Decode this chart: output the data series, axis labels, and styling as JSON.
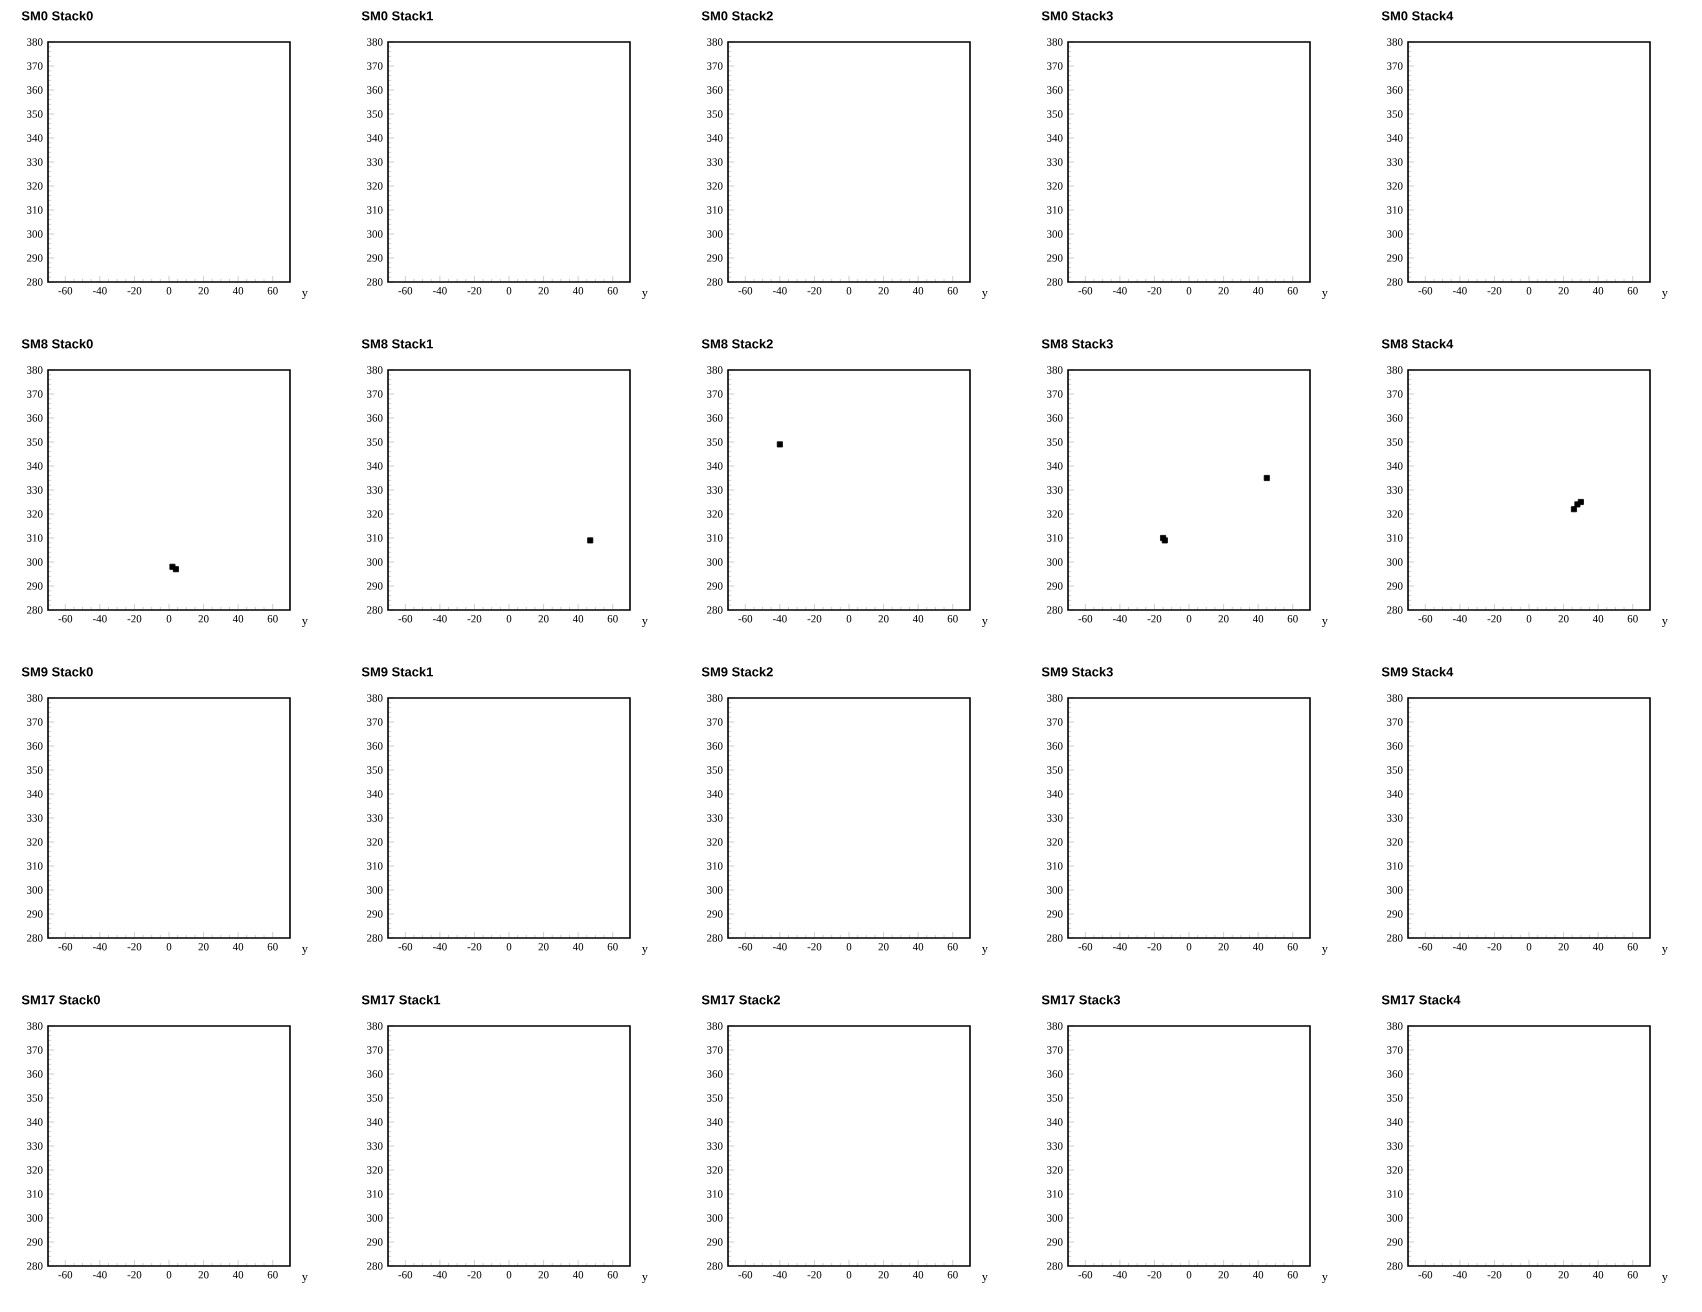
{
  "chart_data": [
    {
      "type": "scatter",
      "title": "SM0 Stack0",
      "xlabel": "y",
      "xlim": [
        -70,
        70
      ],
      "ylim": [
        280,
        380
      ],
      "xticks": [
        -60,
        -40,
        -20,
        0,
        20,
        40,
        60
      ],
      "yticks": [
        280,
        290,
        300,
        310,
        320,
        330,
        340,
        350,
        360,
        370,
        380
      ]
    },
    {
      "type": "scatter",
      "title": "SM0 Stack1",
      "xlabel": "y",
      "xlim": [
        -70,
        70
      ],
      "ylim": [
        280,
        380
      ],
      "xticks": [
        -60,
        -40,
        -20,
        0,
        20,
        40,
        60
      ],
      "yticks": [
        280,
        290,
        300,
        310,
        320,
        330,
        340,
        350,
        360,
        370,
        380
      ]
    },
    {
      "type": "scatter",
      "title": "SM0 Stack2",
      "xlabel": "y",
      "xlim": [
        -70,
        70
      ],
      "ylim": [
        280,
        380
      ],
      "xticks": [
        -60,
        -40,
        -20,
        0,
        20,
        40,
        60
      ],
      "yticks": [
        280,
        290,
        300,
        310,
        320,
        330,
        340,
        350,
        360,
        370,
        380
      ]
    },
    {
      "type": "scatter",
      "title": "SM0 Stack3",
      "xlabel": "y",
      "xlim": [
        -70,
        70
      ],
      "ylim": [
        280,
        380
      ],
      "xticks": [
        -60,
        -40,
        -20,
        0,
        20,
        40,
        60
      ],
      "yticks": [
        280,
        290,
        300,
        310,
        320,
        330,
        340,
        350,
        360,
        370,
        380
      ]
    },
    {
      "type": "scatter",
      "title": "SM0 Stack4",
      "xlabel": "y",
      "xlim": [
        -70,
        70
      ],
      "ylim": [
        280,
        380
      ],
      "xticks": [
        -60,
        -40,
        -20,
        0,
        20,
        40,
        60
      ],
      "yticks": [
        280,
        290,
        300,
        310,
        320,
        330,
        340,
        350,
        360,
        370,
        380
      ]
    },
    {
      "type": "scatter",
      "title": "SM8 Stack0",
      "xlabel": "y",
      "xlim": [
        -70,
        70
      ],
      "ylim": [
        280,
        380
      ],
      "xticks": [
        -60,
        -40,
        -20,
        0,
        20,
        40,
        60
      ],
      "yticks": [
        280,
        290,
        300,
        310,
        320,
        330,
        340,
        350,
        360,
        370,
        380
      ],
      "marker": "square",
      "color": "#000000",
      "x": [
        2,
        4
      ],
      "values": [
        298,
        297
      ]
    },
    {
      "type": "scatter",
      "title": "SM8 Stack1",
      "xlabel": "y",
      "xlim": [
        -70,
        70
      ],
      "ylim": [
        280,
        380
      ],
      "xticks": [
        -60,
        -40,
        -20,
        0,
        20,
        40,
        60
      ],
      "yticks": [
        280,
        290,
        300,
        310,
        320,
        330,
        340,
        350,
        360,
        370,
        380
      ],
      "marker": "square",
      "color": "#000000",
      "x": [
        47
      ],
      "values": [
        309
      ]
    },
    {
      "type": "scatter",
      "title": "SM8 Stack2",
      "xlabel": "y",
      "xlim": [
        -70,
        70
      ],
      "ylim": [
        280,
        380
      ],
      "xticks": [
        -60,
        -40,
        -20,
        0,
        20,
        40,
        60
      ],
      "yticks": [
        280,
        290,
        300,
        310,
        320,
        330,
        340,
        350,
        360,
        370,
        380
      ],
      "marker": "square",
      "color": "#000000",
      "x": [
        -40
      ],
      "values": [
        349
      ]
    },
    {
      "type": "scatter",
      "title": "SM8 Stack3",
      "xlabel": "y",
      "xlim": [
        -70,
        70
      ],
      "ylim": [
        280,
        380
      ],
      "xticks": [
        -60,
        -40,
        -20,
        0,
        20,
        40,
        60
      ],
      "yticks": [
        280,
        290,
        300,
        310,
        320,
        330,
        340,
        350,
        360,
        370,
        380
      ],
      "marker": "square",
      "color": "#000000",
      "x": [
        -15,
        -14,
        45
      ],
      "values": [
        310,
        309,
        335
      ]
    },
    {
      "type": "scatter",
      "title": "SM8 Stack4",
      "xlabel": "y",
      "xlim": [
        -70,
        70
      ],
      "ylim": [
        280,
        380
      ],
      "xticks": [
        -60,
        -40,
        -20,
        0,
        20,
        40,
        60
      ],
      "yticks": [
        280,
        290,
        300,
        310,
        320,
        330,
        340,
        350,
        360,
        370,
        380
      ],
      "marker": "square",
      "color": "#000000",
      "x": [
        26,
        28,
        30
      ],
      "values": [
        322,
        324,
        325
      ]
    },
    {
      "type": "scatter",
      "title": "SM9 Stack0",
      "xlabel": "y",
      "xlim": [
        -70,
        70
      ],
      "ylim": [
        280,
        380
      ],
      "xticks": [
        -60,
        -40,
        -20,
        0,
        20,
        40,
        60
      ],
      "yticks": [
        280,
        290,
        300,
        310,
        320,
        330,
        340,
        350,
        360,
        370,
        380
      ]
    },
    {
      "type": "scatter",
      "title": "SM9 Stack1",
      "xlabel": "y",
      "xlim": [
        -70,
        70
      ],
      "ylim": [
        280,
        380
      ],
      "xticks": [
        -60,
        -40,
        -20,
        0,
        20,
        40,
        60
      ],
      "yticks": [
        280,
        290,
        300,
        310,
        320,
        330,
        340,
        350,
        360,
        370,
        380
      ]
    },
    {
      "type": "scatter",
      "title": "SM9 Stack2",
      "xlabel": "y",
      "xlim": [
        -70,
        70
      ],
      "ylim": [
        280,
        380
      ],
      "xticks": [
        -60,
        -40,
        -20,
        0,
        20,
        40,
        60
      ],
      "yticks": [
        280,
        290,
        300,
        310,
        320,
        330,
        340,
        350,
        360,
        370,
        380
      ]
    },
    {
      "type": "scatter",
      "title": "SM9 Stack3",
      "xlabel": "y",
      "xlim": [
        -70,
        70
      ],
      "ylim": [
        280,
        380
      ],
      "xticks": [
        -60,
        -40,
        -20,
        0,
        20,
        40,
        60
      ],
      "yticks": [
        280,
        290,
        300,
        310,
        320,
        330,
        340,
        350,
        360,
        370,
        380
      ]
    },
    {
      "type": "scatter",
      "title": "SM9 Stack4",
      "xlabel": "y",
      "xlim": [
        -70,
        70
      ],
      "ylim": [
        280,
        380
      ],
      "xticks": [
        -60,
        -40,
        -20,
        0,
        20,
        40,
        60
      ],
      "yticks": [
        280,
        290,
        300,
        310,
        320,
        330,
        340,
        350,
        360,
        370,
        380
      ]
    },
    {
      "type": "scatter",
      "title": "SM17 Stack0",
      "xlabel": "y",
      "xlim": [
        -70,
        70
      ],
      "ylim": [
        280,
        380
      ],
      "xticks": [
        -60,
        -40,
        -20,
        0,
        20,
        40,
        60
      ],
      "yticks": [
        280,
        290,
        300,
        310,
        320,
        330,
        340,
        350,
        360,
        370,
        380
      ]
    },
    {
      "type": "scatter",
      "title": "SM17 Stack1",
      "xlabel": "y",
      "xlim": [
        -70,
        70
      ],
      "ylim": [
        280,
        380
      ],
      "xticks": [
        -60,
        -40,
        -20,
        0,
        20,
        40,
        60
      ],
      "yticks": [
        280,
        290,
        300,
        310,
        320,
        330,
        340,
        350,
        360,
        370,
        380
      ]
    },
    {
      "type": "scatter",
      "title": "SM17 Stack2",
      "xlabel": "y",
      "xlim": [
        -70,
        70
      ],
      "ylim": [
        280,
        380
      ],
      "xticks": [
        -60,
        -40,
        -20,
        0,
        20,
        40,
        60
      ],
      "yticks": [
        280,
        290,
        300,
        310,
        320,
        330,
        340,
        350,
        360,
        370,
        380
      ]
    },
    {
      "type": "scatter",
      "title": "SM17 Stack3",
      "xlabel": "y",
      "xlim": [
        -70,
        70
      ],
      "ylim": [
        280,
        380
      ],
      "xticks": [
        -60,
        -40,
        -20,
        0,
        20,
        40,
        60
      ],
      "yticks": [
        280,
        290,
        300,
        310,
        320,
        330,
        340,
        350,
        360,
        370,
        380
      ]
    },
    {
      "type": "scatter",
      "title": "SM17 Stack4",
      "xlabel": "y",
      "xlim": [
        -70,
        70
      ],
      "ylim": [
        280,
        380
      ],
      "xticks": [
        -60,
        -40,
        -20,
        0,
        20,
        40,
        60
      ],
      "yticks": [
        280,
        290,
        300,
        310,
        320,
        330,
        340,
        350,
        360,
        370,
        380
      ]
    }
  ]
}
